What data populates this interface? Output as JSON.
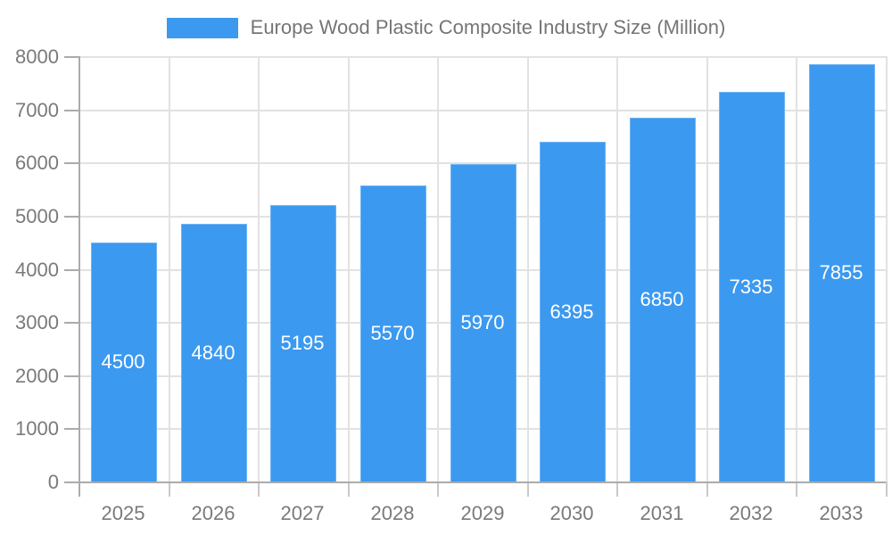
{
  "chart_data": {
    "type": "bar",
    "title": "Europe Wood Plastic Composite Industry Size (Million)",
    "categories": [
      "2025",
      "2026",
      "2027",
      "2028",
      "2029",
      "2030",
      "2031",
      "2032",
      "2033"
    ],
    "values": [
      4500,
      4840,
      5195,
      5570,
      5970,
      6395,
      6850,
      7335,
      7855
    ],
    "xlabel": "",
    "ylabel": "",
    "ylim": [
      0,
      8000
    ],
    "ytick_step": 1000,
    "grid": "on",
    "legend_position": "top",
    "value_labels": "inside-center"
  },
  "colors": {
    "bar_fill": "#3B99F0",
    "bar_border": "#6FB3F3",
    "grid_line": "#E2E2E2",
    "axis_line": "#ABABAB",
    "boundary_tick": "#C9C9C9",
    "axis_label": "#7A7A7A",
    "title_text": "#757575",
    "value_label": "#FFFFFF",
    "background": "#FFFFFF"
  }
}
